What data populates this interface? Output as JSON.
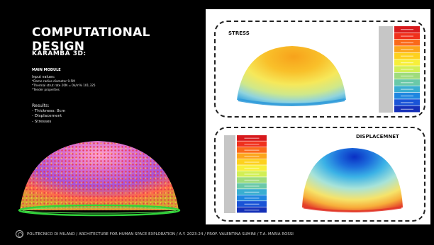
{
  "slide": {
    "title": "COMPUTATIONAL DESIGN",
    "subtitle": "KARAMBA 3D:",
    "module": "MAIN MODULE",
    "inputs_heading": "Input values:",
    "inputs": [
      "*Dome radius diameter 9.5M",
      "*Thermal strut rate  20N = 0k/m% 101.325",
      "*Tender properties"
    ],
    "results_heading": "Results:",
    "results": [
      "- Thickness: 8cm",
      "- Displacement",
      "- Stresses"
    ],
    "footer": "POLITECNICO DI MILANO / ARCHITECTURE FOR HUMAN SPACE EXPLORATION / A.Y. 2023-24 / PROF. VALENTINA SUMINI / T.A. MARIA ROSSI"
  },
  "panels": {
    "stress_label": "STRESS",
    "displacement_label": "DISPLACEMNET"
  },
  "legend_colors": [
    "#d7191c",
    "#f0301c",
    "#fa6a1a",
    "#fca51c",
    "#fdd11f",
    "#f7ef3a",
    "#d2ef55",
    "#9fdc7c",
    "#6ac9a8",
    "#3aaed1",
    "#1f86e0",
    "#1a54d7",
    "#1530b8"
  ],
  "icons": {
    "logo": "university-seal-icon"
  }
}
